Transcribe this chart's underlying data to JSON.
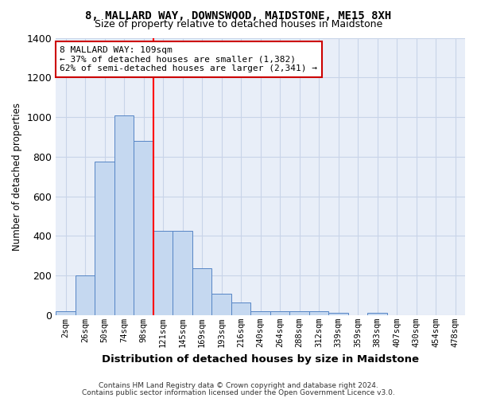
{
  "title": "8, MALLARD WAY, DOWNSWOOD, MAIDSTONE, ME15 8XH",
  "subtitle": "Size of property relative to detached houses in Maidstone",
  "xlabel": "Distribution of detached houses by size in Maidstone",
  "ylabel": "Number of detached properties",
  "bar_color": "#c5d8f0",
  "bar_edge_color": "#5585c5",
  "grid_color": "#c8d4e8",
  "background_color": "#e8eef8",
  "categories": [
    "2sqm",
    "26sqm",
    "50sqm",
    "74sqm",
    "98sqm",
    "121sqm",
    "145sqm",
    "169sqm",
    "193sqm",
    "216sqm",
    "240sqm",
    "264sqm",
    "288sqm",
    "312sqm",
    "339sqm",
    "359sqm",
    "383sqm",
    "407sqm",
    "430sqm",
    "454sqm",
    "478sqm"
  ],
  "values": [
    20,
    200,
    775,
    1010,
    880,
    425,
    425,
    235,
    110,
    65,
    20,
    20,
    20,
    20,
    12,
    0,
    12,
    0,
    0,
    0,
    0
  ],
  "ylim": [
    0,
    1400
  ],
  "yticks": [
    0,
    200,
    400,
    600,
    800,
    1000,
    1200,
    1400
  ],
  "property_line_x": 4.5,
  "annotation_text": "8 MALLARD WAY: 109sqm\n← 37% of detached houses are smaller (1,382)\n62% of semi-detached houses are larger (2,341) →",
  "annotation_box_color": "#ffffff",
  "annotation_box_edge": "#cc0000",
  "footer_line1": "Contains HM Land Registry data © Crown copyright and database right 2024.",
  "footer_line2": "Contains public sector information licensed under the Open Government Licence v3.0."
}
